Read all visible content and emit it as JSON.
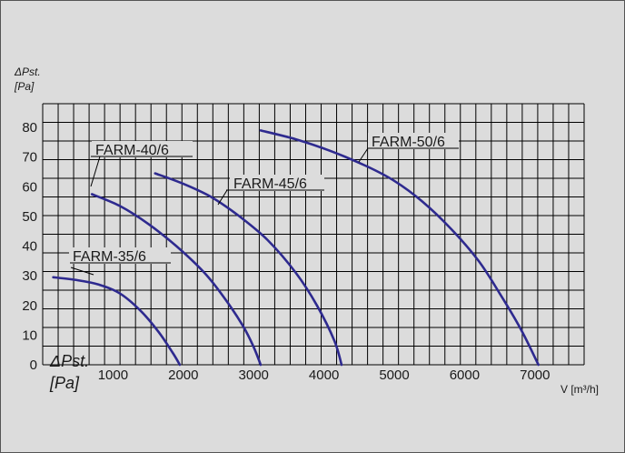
{
  "colors": {
    "background": "#dcdcdc",
    "grid": "#000000",
    "curve": "#2e2a8f"
  },
  "chart_data": {
    "type": "line",
    "ylabel": [
      "ΔPst.",
      "[Pa]"
    ],
    "ylabel_bottom": [
      "ΔPst.",
      "[Pa]"
    ],
    "xlabel": "V [m³/h]",
    "xlim": [
      0,
      7700
    ],
    "ylim": [
      0,
      88
    ],
    "x_ticks": [
      "1000",
      "2000",
      "3000",
      "4000",
      "5000",
      "6000",
      "7000"
    ],
    "y_ticks": [
      "0",
      "10",
      "20",
      "30",
      "40",
      "50",
      "60",
      "70",
      "80"
    ],
    "grid": true,
    "series": [
      {
        "name": "FARM-35/6",
        "points": [
          [
            150,
            29.5
          ],
          [
            500,
            28.5
          ],
          [
            800,
            27
          ],
          [
            1100,
            24
          ],
          [
            1400,
            18
          ],
          [
            1650,
            11
          ],
          [
            1850,
            4
          ],
          [
            1950,
            0
          ]
        ]
      },
      {
        "name": "FARM-40/6",
        "points": [
          [
            700,
            57.5
          ],
          [
            1100,
            53.5
          ],
          [
            1500,
            47.5
          ],
          [
            1900,
            40
          ],
          [
            2300,
            31
          ],
          [
            2600,
            22
          ],
          [
            2850,
            13
          ],
          [
            3000,
            6
          ],
          [
            3100,
            0
          ]
        ]
      },
      {
        "name": "FARM-45/6",
        "points": [
          [
            1600,
            64.5
          ],
          [
            2000,
            61
          ],
          [
            2400,
            56.5
          ],
          [
            2800,
            50
          ],
          [
            3200,
            42
          ],
          [
            3600,
            31
          ],
          [
            3900,
            20
          ],
          [
            4150,
            8
          ],
          [
            4250,
            0
          ]
        ]
      },
      {
        "name": "FARM-50/6",
        "points": [
          [
            3100,
            79
          ],
          [
            3600,
            76
          ],
          [
            4100,
            72
          ],
          [
            4600,
            67
          ],
          [
            5000,
            62
          ],
          [
            5400,
            55
          ],
          [
            5800,
            46
          ],
          [
            6200,
            35
          ],
          [
            6500,
            24
          ],
          [
            6800,
            12
          ],
          [
            7050,
            0
          ]
        ]
      }
    ],
    "labels": [
      {
        "text": "FARM-35/6",
        "series": 0
      },
      {
        "text": "FARM-40/6",
        "series": 1
      },
      {
        "text": "FARM-45/6",
        "series": 2
      },
      {
        "text": "FARM-50/6",
        "series": 3
      }
    ]
  }
}
